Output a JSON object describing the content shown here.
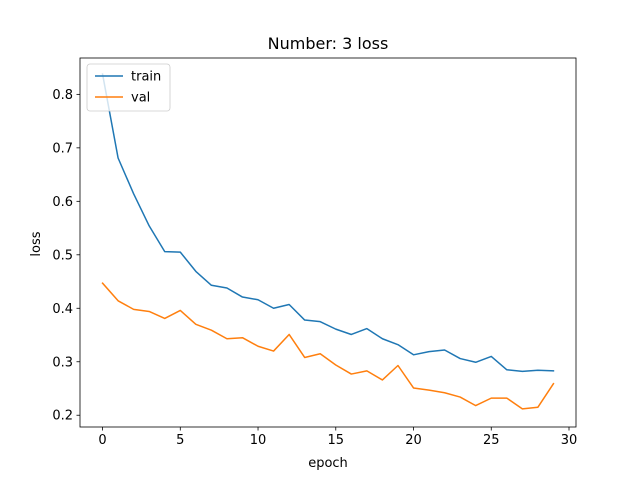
{
  "chart_data": {
    "type": "line",
    "title": "Number: 3 loss",
    "xlabel": "epoch",
    "ylabel": "loss",
    "xlim": [
      -1.45,
      30.45
    ],
    "ylim": [
      0.178,
      0.868
    ],
    "xticks": [
      0,
      5,
      10,
      15,
      20,
      25,
      30
    ],
    "yticks": [
      0.2,
      0.3,
      0.4,
      0.5,
      0.6,
      0.7,
      0.8
    ],
    "grid": false,
    "legend_position": "top-left",
    "x": [
      0,
      1,
      2,
      3,
      4,
      5,
      6,
      7,
      8,
      9,
      10,
      11,
      12,
      13,
      14,
      15,
      16,
      17,
      18,
      19,
      20,
      21,
      22,
      23,
      24,
      25,
      26,
      27,
      28,
      29
    ],
    "series": [
      {
        "name": "train",
        "color": "#1f77b4",
        "values": [
          0.838,
          0.681,
          0.614,
          0.554,
          0.506,
          0.505,
          0.469,
          0.443,
          0.438,
          0.421,
          0.416,
          0.4,
          0.407,
          0.378,
          0.375,
          0.361,
          0.351,
          0.362,
          0.343,
          0.332,
          0.313,
          0.319,
          0.322,
          0.306,
          0.299,
          0.31,
          0.285,
          0.282,
          0.284,
          0.283
        ]
      },
      {
        "name": "val",
        "color": "#ff7f0e",
        "values": [
          0.447,
          0.414,
          0.398,
          0.394,
          0.381,
          0.396,
          0.37,
          0.359,
          0.343,
          0.345,
          0.329,
          0.32,
          0.351,
          0.308,
          0.315,
          0.294,
          0.277,
          0.283,
          0.266,
          0.293,
          0.251,
          0.247,
          0.242,
          0.234,
          0.218,
          0.232,
          0.232,
          0.212,
          0.215,
          0.259
        ]
      }
    ]
  }
}
